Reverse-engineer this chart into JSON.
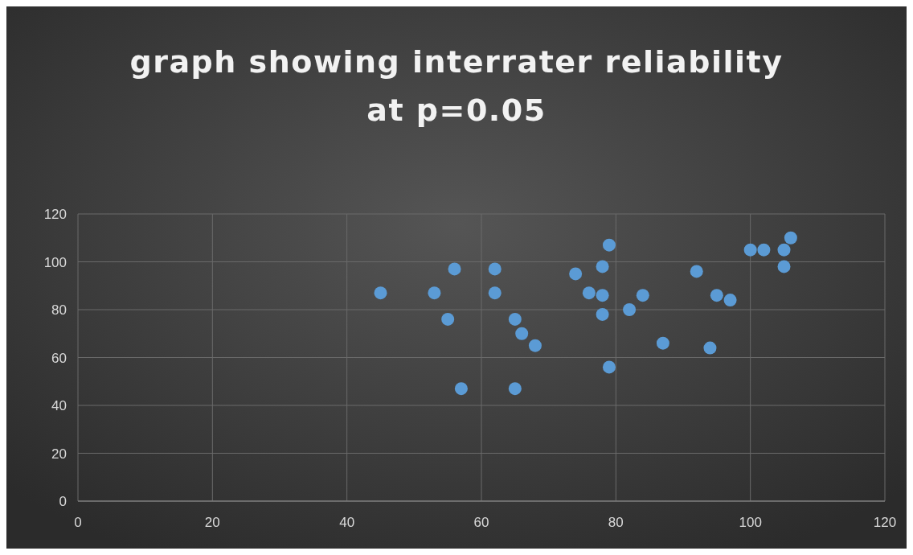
{
  "chart_data": {
    "type": "scatter",
    "title": "graph showing interrater reliability at p=0.05",
    "x": [
      45,
      53,
      56,
      55,
      57,
      62,
      62,
      65,
      66,
      68,
      65,
      74,
      76,
      78,
      78,
      78,
      79,
      79,
      82,
      84,
      87,
      92,
      94,
      95,
      97,
      100,
      102,
      105,
      105,
      106
    ],
    "values": [
      87,
      87,
      97,
      76,
      47,
      97,
      87,
      76,
      70,
      65,
      47,
      95,
      87,
      98,
      86,
      78,
      107,
      56,
      80,
      86,
      66,
      96,
      64,
      86,
      84,
      105,
      105,
      105,
      98,
      110
    ],
    "color": "#5b9bd5",
    "marker": "circle",
    "xlim": [
      0,
      120
    ],
    "xticks": [
      0,
      20,
      40,
      60,
      80,
      100,
      120
    ],
    "ylim": [
      0,
      120
    ],
    "yticks": [
      0,
      20,
      40,
      60,
      80,
      100,
      120
    ],
    "grid": true
  }
}
